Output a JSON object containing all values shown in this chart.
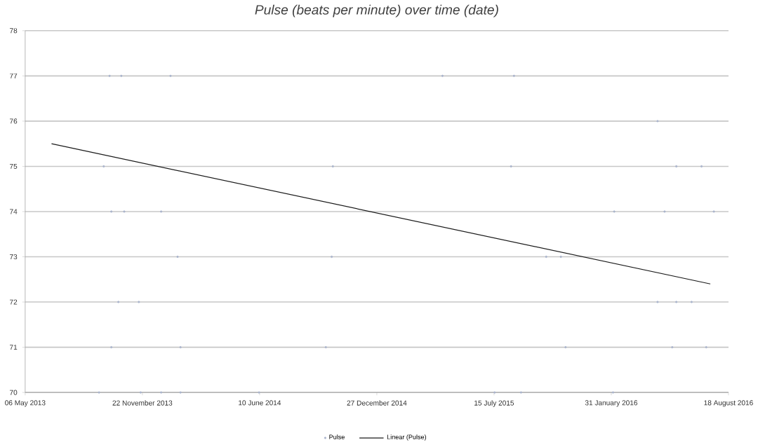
{
  "chart_data": {
    "type": "scatter",
    "title": "Pulse (beats per minute) over time (date)",
    "xlim": [
      "2013-05-06",
      "2016-08-18"
    ],
    "xticks": [
      {
        "value": "2013-05-06",
        "label": "06 May 2013"
      },
      {
        "value": "2013-11-22",
        "label": "22 November 2013"
      },
      {
        "value": "2014-06-10",
        "label": "10 June 2014"
      },
      {
        "value": "2014-12-27",
        "label": "27 December 2014"
      },
      {
        "value": "2015-07-15",
        "label": "15 July 2015"
      },
      {
        "value": "2016-01-31",
        "label": "31 January 2016"
      },
      {
        "value": "2016-08-18",
        "label": "18 August 2016"
      }
    ],
    "ylim": [
      70,
      78
    ],
    "yticks": [
      70,
      71,
      72,
      73,
      74,
      75,
      76,
      77,
      78
    ],
    "grid": "y",
    "legend": "bottom",
    "series": [
      {
        "name": "Pulse",
        "marker": "circle",
        "color": "#aab4cc",
        "x": [
          "2013-09-09",
          "2013-09-17",
          "2013-09-27",
          "2013-09-30",
          "2013-09-30",
          "2013-10-12",
          "2013-10-17",
          "2013-10-22",
          "2013-11-16",
          "2013-11-19",
          "2013-12-24",
          "2013-12-24",
          "2014-01-09",
          "2014-01-21",
          "2014-01-26",
          "2014-01-26",
          "2014-06-09",
          "2014-10-01",
          "2014-10-11",
          "2014-10-13",
          "2015-04-18",
          "2015-07-16",
          "2015-08-13",
          "2015-08-18",
          "2015-08-30",
          "2015-10-12",
          "2015-11-06",
          "2015-11-14",
          "2016-02-03",
          "2016-02-05",
          "2016-04-19",
          "2016-04-19",
          "2016-05-01",
          "2016-05-14",
          "2016-05-21",
          "2016-05-21",
          "2016-06-16",
          "2016-07-03",
          "2016-07-11",
          "2016-07-24"
        ],
        "values": [
          70,
          75,
          77,
          74,
          71,
          72,
          77,
          74,
          72,
          70,
          74,
          70,
          77,
          73,
          71,
          70,
          70,
          71,
          73,
          75,
          77,
          70,
          75,
          77,
          70,
          73,
          73,
          71,
          70,
          74,
          76,
          72,
          74,
          71,
          75,
          72,
          72,
          75,
          71,
          74
        ]
      },
      {
        "name": "Linear (Pulse)",
        "type": "line",
        "color": "#1a1a1a",
        "marker": "none",
        "x": [
          "2013-06-20",
          "2016-07-18"
        ],
        "values": [
          75.5,
          72.4
        ]
      }
    ]
  }
}
